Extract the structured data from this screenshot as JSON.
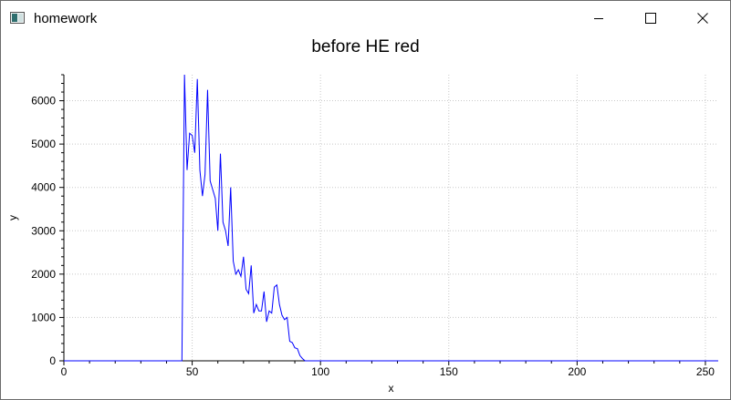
{
  "window": {
    "title": "homework",
    "icons": {
      "app": "app-window-icon",
      "minimize": "minimize-icon",
      "maximize": "maximize-icon",
      "close": "close-icon"
    }
  },
  "chart_data": {
    "type": "line",
    "title": "before HE red",
    "xlabel": "x",
    "ylabel": "y",
    "xlim": [
      0,
      255
    ],
    "ylim": [
      0,
      6600
    ],
    "xticks": [
      0,
      50,
      100,
      150,
      200,
      250
    ],
    "yticks": [
      0,
      1000,
      2000,
      3000,
      4000,
      5000,
      6000
    ],
    "grid": true,
    "series_color": "#0000ff",
    "series": [
      {
        "values": [
          [
            0,
            0
          ],
          [
            46,
            0
          ],
          [
            47,
            6600
          ],
          [
            48,
            4400
          ],
          [
            49,
            5250
          ],
          [
            50,
            5200
          ],
          [
            51,
            4800
          ],
          [
            52,
            6500
          ],
          [
            53,
            4400
          ],
          [
            54,
            3800
          ],
          [
            55,
            4300
          ],
          [
            56,
            6250
          ],
          [
            57,
            4150
          ],
          [
            58,
            3950
          ],
          [
            59,
            3750
          ],
          [
            60,
            3000
          ],
          [
            61,
            4780
          ],
          [
            62,
            3200
          ],
          [
            63,
            3000
          ],
          [
            64,
            2650
          ],
          [
            65,
            4000
          ],
          [
            66,
            2300
          ],
          [
            67,
            2000
          ],
          [
            68,
            2100
          ],
          [
            69,
            1950
          ],
          [
            70,
            2400
          ],
          [
            71,
            1650
          ],
          [
            72,
            1550
          ],
          [
            73,
            2200
          ],
          [
            74,
            1100
          ],
          [
            75,
            1300
          ],
          [
            76,
            1150
          ],
          [
            77,
            1150
          ],
          [
            78,
            1600
          ],
          [
            79,
            900
          ],
          [
            80,
            1150
          ],
          [
            81,
            1100
          ],
          [
            82,
            1700
          ],
          [
            83,
            1750
          ],
          [
            84,
            1300
          ],
          [
            85,
            1050
          ],
          [
            86,
            950
          ],
          [
            87,
            1000
          ],
          [
            88,
            450
          ],
          [
            89,
            420
          ],
          [
            90,
            300
          ],
          [
            91,
            280
          ],
          [
            92,
            120
          ],
          [
            93,
            50
          ],
          [
            94,
            0
          ],
          [
            255,
            0
          ]
        ]
      }
    ]
  }
}
